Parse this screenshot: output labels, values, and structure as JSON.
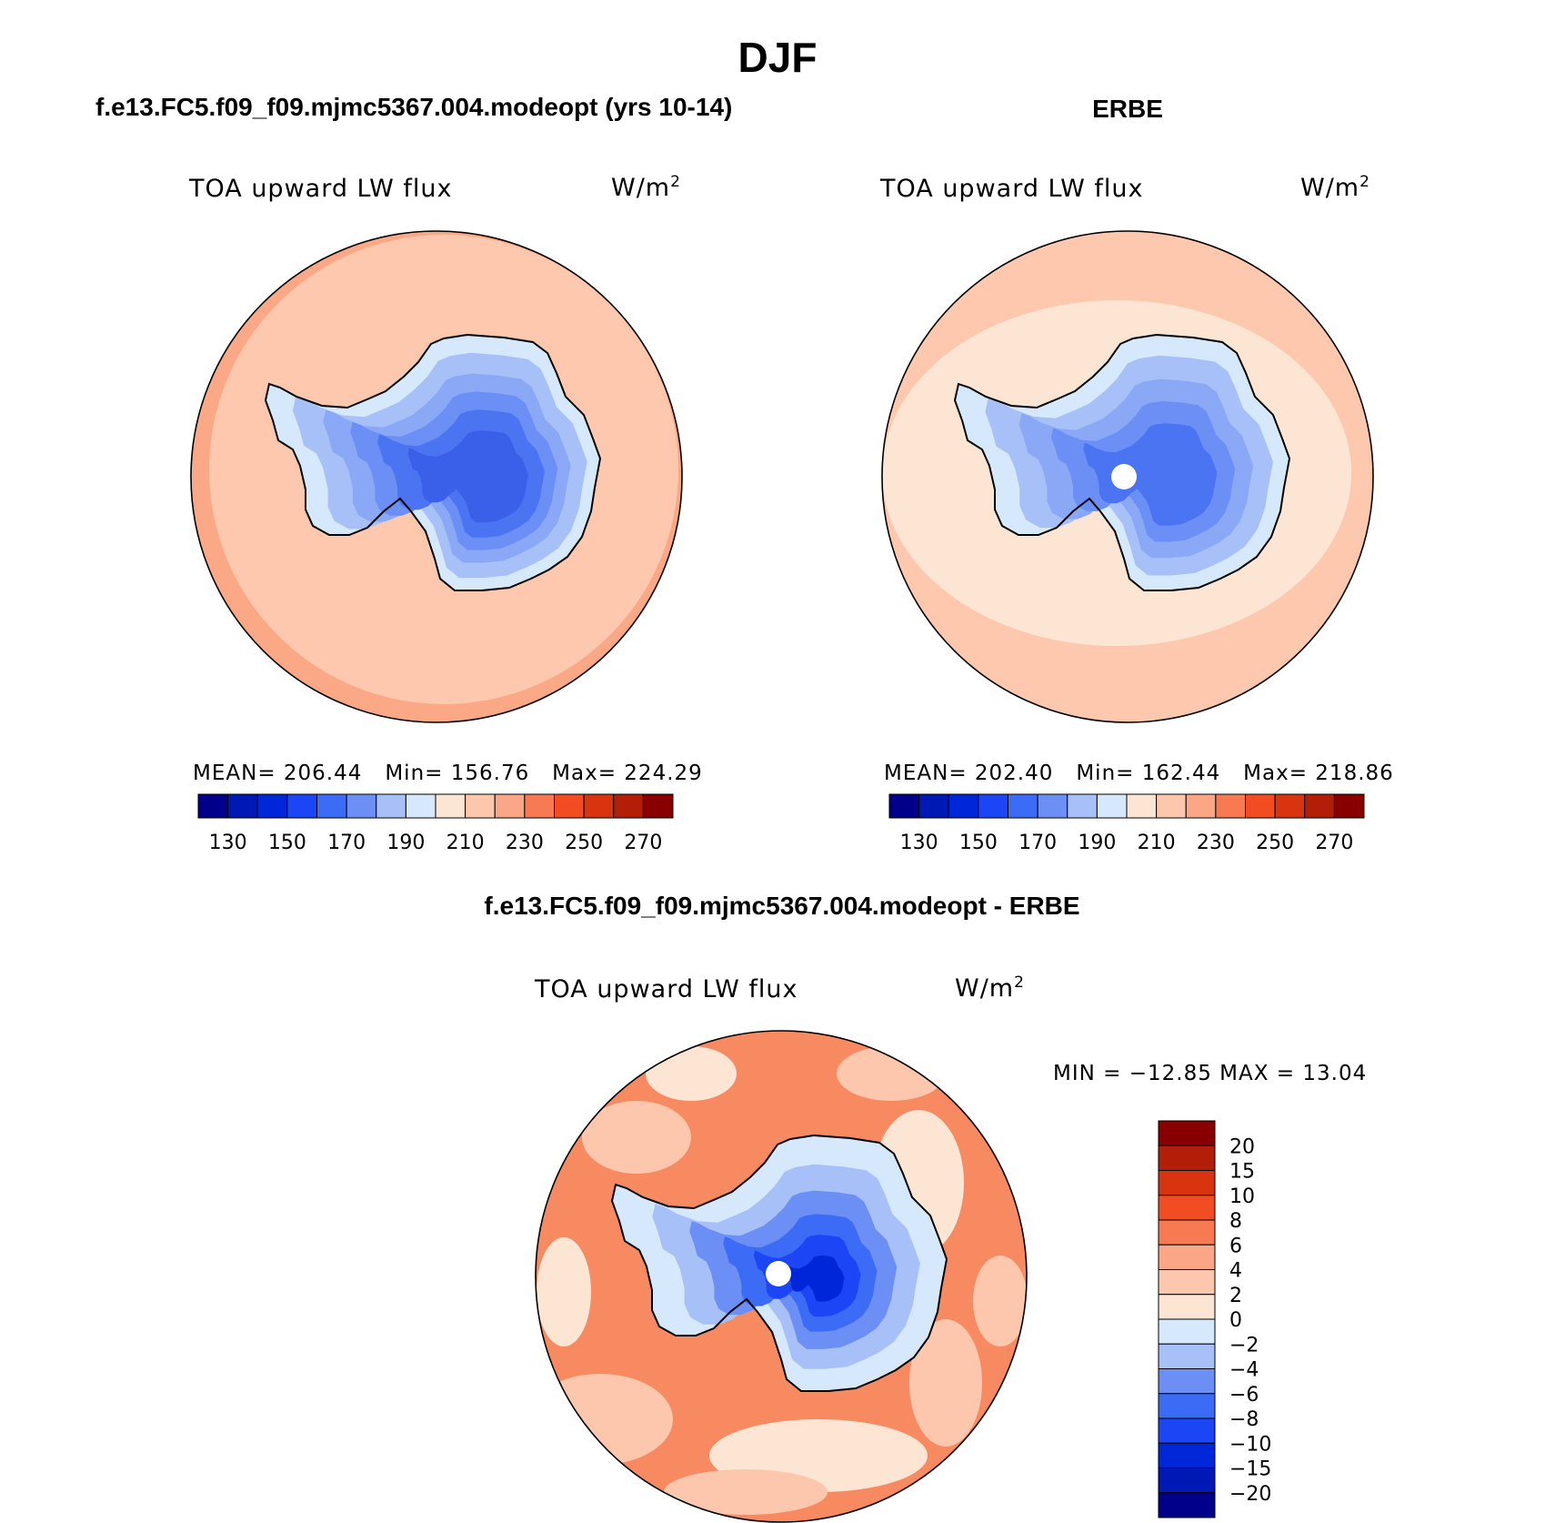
{
  "figure": {
    "title": "DJF"
  },
  "chart_data": [
    {
      "type": "heatmap",
      "title": "f.e13.FC5.f09_f09.mjmc5367.004.modeopt (yrs 10-14)",
      "variable": "TOA upward LW flux",
      "units": "W/m",
      "units_superscript": "2",
      "projection": "south-polar-stereographic",
      "mean_label": "MEAN=",
      "mean": "206.44",
      "min_label": "Min=",
      "min": "156.76",
      "max_label": "Max=",
      "max": "224.29",
      "colorbar": {
        "orientation": "horizontal",
        "tick_labels": [
          "130",
          "150",
          "170",
          "190",
          "210",
          "230",
          "250",
          "270"
        ],
        "colors": [
          "#00008b",
          "#0018b4",
          "#0026d9",
          "#1c46f5",
          "#3c6cf5",
          "#6b8ff5",
          "#a7c0f7",
          "#d6e8fb",
          "#fde5d4",
          "#fdc7ae",
          "#fba686",
          "#f87a52",
          "#f24d22",
          "#d83410",
          "#b31e08",
          "#880000"
        ]
      },
      "field": {
        "ocean": "#fdc8ad",
        "outer_ring": "#fba886",
        "antarctica_levels": [
          "#d6e8fb",
          "#a7c0f7",
          "#8aa8f6",
          "#6b8ff5",
          "#4a74f2",
          "#3a60ea"
        ]
      }
    },
    {
      "type": "heatmap",
      "title": "ERBE",
      "variable": "TOA upward LW flux",
      "units": "W/m",
      "units_superscript": "2",
      "projection": "south-polar-stereographic",
      "mean_label": "MEAN=",
      "mean": "202.40",
      "min_label": "Min=",
      "min": "162.44",
      "max_label": "Max=",
      "max": "218.86",
      "colorbar": {
        "orientation": "horizontal",
        "tick_labels": [
          "130",
          "150",
          "170",
          "190",
          "210",
          "230",
          "250",
          "270"
        ],
        "colors": [
          "#00008b",
          "#0018b4",
          "#0026d9",
          "#1c46f5",
          "#3c6cf5",
          "#6b8ff5",
          "#a7c0f7",
          "#d6e8fb",
          "#fde5d4",
          "#fdc7ae",
          "#fba686",
          "#f87a52",
          "#f24d22",
          "#d83410",
          "#b31e08",
          "#880000"
        ]
      },
      "field": {
        "ocean": "#fde5d4",
        "outer_ring": "#fdc8ad",
        "antarctica_levels": [
          "#d6e8fb",
          "#a7c0f7",
          "#8aa8f6",
          "#6b8ff5",
          "#4a74f2"
        ]
      }
    },
    {
      "type": "heatmap",
      "title": "f.e13.FC5.f09_f09.mjmc5367.004.modeopt - ERBE",
      "variable": "TOA upward LW flux",
      "units": "W/m",
      "units_superscript": "2",
      "projection": "south-polar-stereographic",
      "minmax_text": "MIN = −12.85 MAX =  13.04",
      "min": -12.85,
      "max": 13.04,
      "colorbar": {
        "orientation": "vertical",
        "tick_labels": [
          "20",
          "15",
          "10",
          "8",
          "6",
          "4",
          "2",
          "0",
          "−2",
          "−4",
          "−6",
          "−8",
          "−10",
          "−15",
          "−20"
        ],
        "colors": [
          "#880000",
          "#b31e08",
          "#d83410",
          "#f24d22",
          "#f87a52",
          "#fba686",
          "#fdc7ae",
          "#fde5d4",
          "#d6e8fb",
          "#a7c0f7",
          "#6b8ff5",
          "#3c6cf5",
          "#1c46f5",
          "#0026d9",
          "#0018b4",
          "#00008b"
        ]
      },
      "field": {
        "ocean": "#f88a62",
        "ocean_light": "#fdc7ae",
        "ocean_lighter": "#fde5d4",
        "antarctica_levels": [
          "#d6e8fb",
          "#a7c0f7",
          "#6b8ff5",
          "#3c6cf5",
          "#1c46f5",
          "#0026d9"
        ]
      }
    }
  ]
}
